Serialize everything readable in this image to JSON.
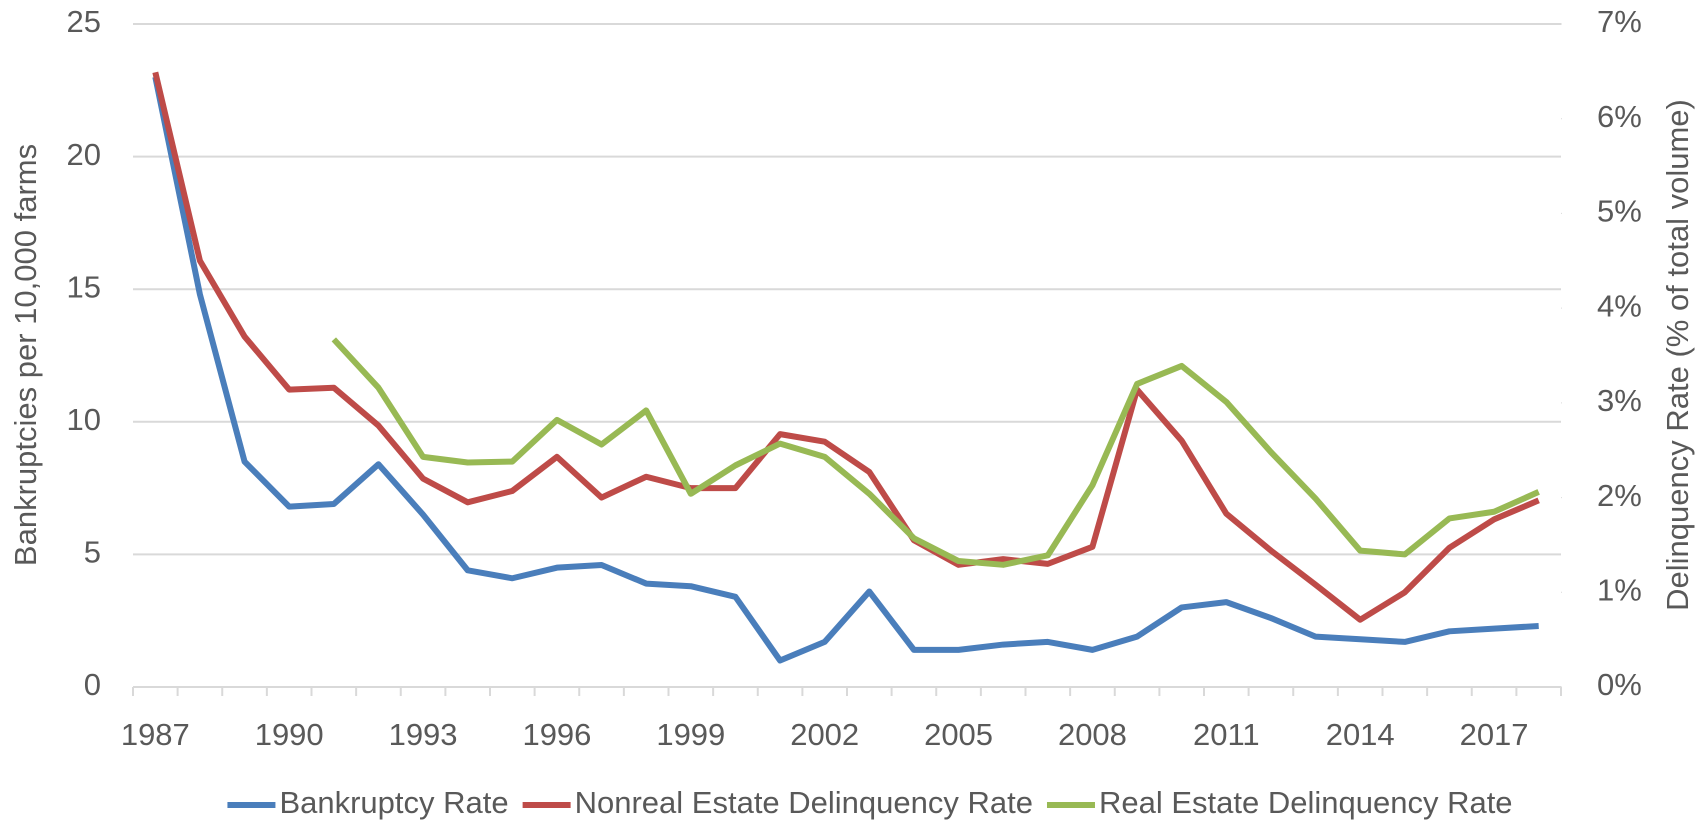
{
  "chart_data": {
    "type": "line",
    "y_label": "Bankruptcies per 10,000 farms",
    "y2_label": "Delinquency Rate (% of total volume)",
    "x": [
      1987,
      1988,
      1989,
      1990,
      1991,
      1992,
      1993,
      1994,
      1995,
      1996,
      1997,
      1998,
      1999,
      2000,
      2001,
      2002,
      2003,
      2004,
      2005,
      2006,
      2007,
      2008,
      2009,
      2010,
      2011,
      2012,
      2013,
      2014,
      2015,
      2016,
      2017,
      2018
    ],
    "xlim": [
      1986.5,
      2018.5
    ],
    "xticks": [
      1987,
      1990,
      1993,
      1996,
      1999,
      2002,
      2005,
      2008,
      2011,
      2014,
      2017
    ],
    "ylim": [
      0,
      25
    ],
    "yticks": [
      0,
      5,
      10,
      15,
      20,
      25
    ],
    "y2lim": [
      0,
      7
    ],
    "y2ticks": [
      {
        "value": 0,
        "label": "0%"
      },
      {
        "value": 1,
        "label": "1%"
      },
      {
        "value": 2,
        "label": "2%"
      },
      {
        "value": 3,
        "label": "3%"
      },
      {
        "value": 4,
        "label": "4%"
      },
      {
        "value": 5,
        "label": "5%"
      },
      {
        "value": 6,
        "label": "6%"
      },
      {
        "value": 7,
        "label": "7%"
      }
    ],
    "grid": true,
    "legend": "bottom",
    "series": [
      {
        "name": "Bankruptcy Rate",
        "color": "#4a7ebb",
        "values": [
          23.0,
          14.8,
          8.5,
          6.8,
          6.9,
          8.4,
          6.5,
          4.4,
          4.1,
          4.5,
          4.6,
          3.9,
          3.8,
          3.4,
          1.0,
          1.7,
          3.6,
          1.4,
          1.4,
          1.6,
          1.7,
          1.4,
          1.9,
          3.0,
          3.2,
          2.6,
          1.9,
          1.8,
          1.7,
          2.1,
          2.2,
          2.3
        ]
      },
      {
        "name": "Nonreal Estate Delinquency Rate",
        "color": "#be4b48",
        "axis": "y2",
        "values": [
          6.49,
          4.5,
          3.7,
          3.14,
          3.16,
          2.76,
          2.2,
          1.95,
          2.07,
          2.43,
          2.0,
          2.22,
          2.1,
          2.1,
          2.67,
          2.59,
          2.27,
          1.55,
          1.29,
          1.35,
          1.3,
          1.48,
          3.14,
          2.6,
          1.83,
          1.44,
          1.08,
          0.71,
          1.0,
          1.47,
          1.77,
          1.97
        ]
      },
      {
        "name": "Real Estate Delinquency Rate",
        "color": "#98b954",
        "axis": "y2",
        "values": [
          null,
          null,
          null,
          null,
          3.67,
          3.16,
          2.43,
          2.37,
          2.38,
          2.82,
          2.56,
          2.92,
          2.04,
          2.34,
          2.57,
          2.43,
          2.04,
          1.57,
          1.33,
          1.29,
          1.39,
          2.13,
          3.2,
          3.39,
          3.01,
          2.48,
          1.99,
          1.44,
          1.4,
          1.78,
          1.85,
          2.06
        ]
      }
    ]
  }
}
